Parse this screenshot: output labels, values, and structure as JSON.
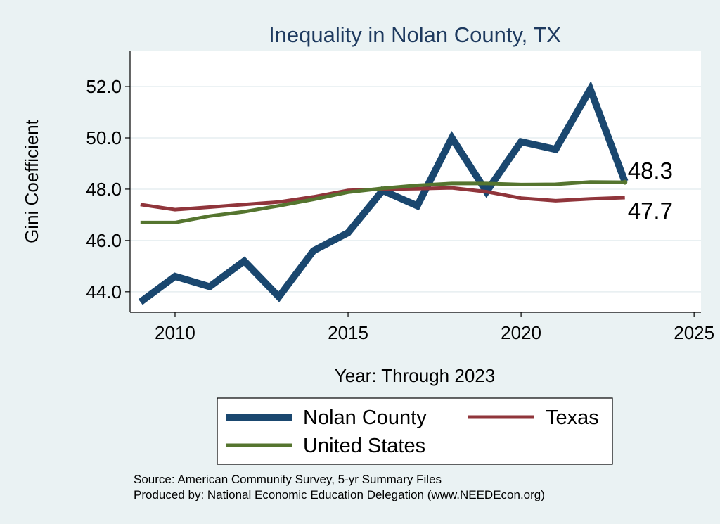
{
  "chart_data": {
    "type": "line",
    "title": "Inequality in Nolan County, TX",
    "xlabel": "Year: Through 2023",
    "ylabel": "Gini Coefficient",
    "xlim": [
      2008.7,
      2025.2
    ],
    "ylim": [
      43.2,
      53.4
    ],
    "x_ticks": [
      2010,
      2015,
      2020,
      2025
    ],
    "y_ticks": [
      "44.0",
      "46.0",
      "48.0",
      "50.0",
      "52.0"
    ],
    "grid": true,
    "x": [
      2009,
      2010,
      2011,
      2012,
      2013,
      2014,
      2015,
      2016,
      2017,
      2018,
      2019,
      2020,
      2021,
      2022,
      2023
    ],
    "series": [
      {
        "name": "Nolan County",
        "color": "#1a476f",
        "width": 10,
        "values": [
          43.6,
          44.6,
          44.2,
          45.2,
          43.8,
          45.6,
          46.3,
          47.95,
          47.35,
          50.0,
          47.9,
          49.85,
          49.55,
          51.9,
          48.3
        ]
      },
      {
        "name": "Texas",
        "color": "#90353b",
        "width": 5,
        "values": [
          47.4,
          47.2,
          47.3,
          47.4,
          47.5,
          47.7,
          47.95,
          48.0,
          48.02,
          48.05,
          47.9,
          47.65,
          47.55,
          47.62,
          47.67
        ]
      },
      {
        "name": "United States",
        "color": "#55752f",
        "width": 5,
        "values": [
          46.7,
          46.7,
          46.95,
          47.12,
          47.35,
          47.6,
          47.88,
          48.03,
          48.15,
          48.22,
          48.22,
          48.18,
          48.19,
          48.28,
          48.27
        ]
      }
    ],
    "end_labels": [
      {
        "series": "Nolan County",
        "text": "48.3"
      },
      {
        "series": "Texas",
        "text": "47.7"
      }
    ],
    "legend": {
      "position": "bottom",
      "entries": [
        "Nolan County",
        "Texas",
        "United States"
      ]
    },
    "source_lines": [
      "Source: American Community Survey, 5-yr Summary Files",
      "Produced by: National Economic Education Delegation (www.NEEDEcon.org)"
    ]
  }
}
